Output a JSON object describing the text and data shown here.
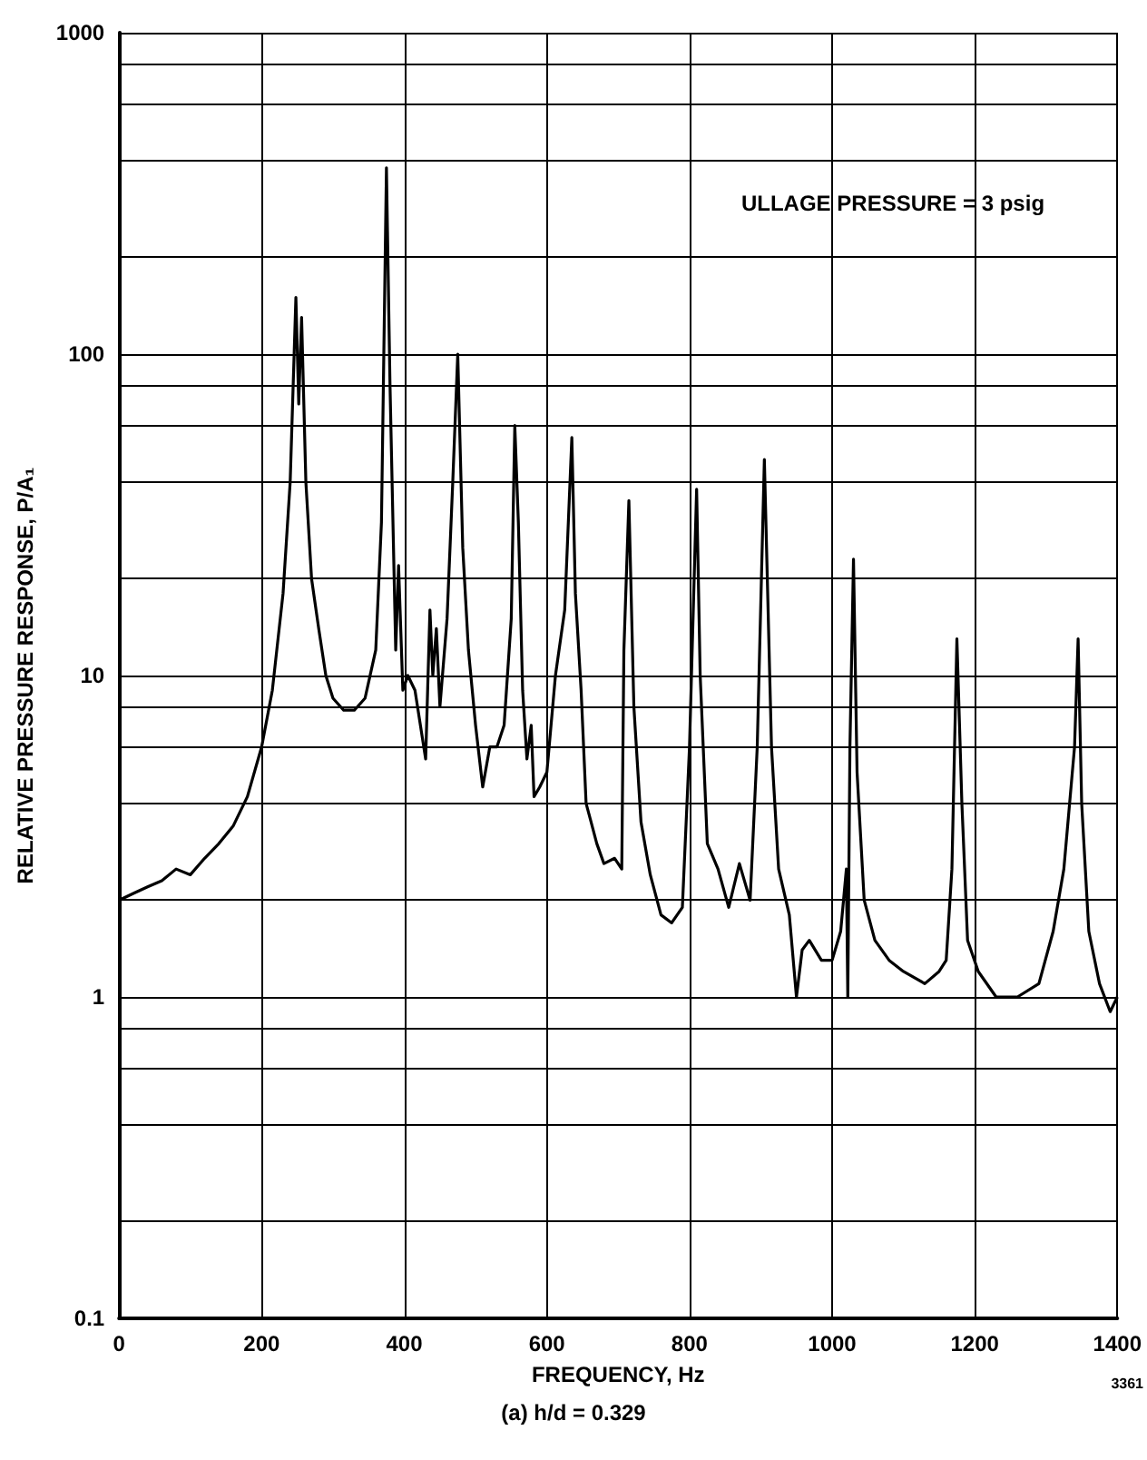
{
  "chart_data": {
    "type": "line",
    "xlabel": "FREQUENCY, Hz",
    "ylabel": "RELATIVE PRESSURE RESPONSE, P/A₁",
    "annotations": [
      "ULLAGE PRESSURE = 3 psig",
      "(a) h/d = 0.329",
      "3361"
    ],
    "xlim": [
      0,
      1400
    ],
    "xticks": [
      0,
      200,
      400,
      600,
      800,
      1000,
      1200,
      1400
    ],
    "ylim": [
      0.1,
      1000
    ],
    "yticks": [
      0.1,
      {
        "value": 0.2,
        "label": null
      },
      {
        "value": 0.4,
        "label": null
      },
      {
        "value": 0.6,
        "label": null
      },
      {
        "value": 0.8,
        "label": null
      },
      1,
      {
        "value": 2,
        "label": null
      },
      {
        "value": 4,
        "label": null
      },
      {
        "value": 6,
        "label": null
      },
      {
        "value": 8,
        "label": null
      },
      10,
      {
        "value": 20,
        "label": null
      },
      {
        "value": 40,
        "label": null
      },
      {
        "value": 60,
        "label": null
      },
      {
        "value": 80,
        "label": null
      },
      100,
      {
        "value": 200,
        "label": null
      },
      {
        "value": 400,
        "label": null
      },
      {
        "value": 600,
        "label": null
      },
      {
        "value": 800,
        "label": null
      },
      1000
    ],
    "log": "y",
    "grid": true,
    "marker": "none",
    "line_style": "solid",
    "series": [
      {
        "color": "#000000",
        "x": [
          0,
          20,
          40,
          60,
          80,
          100,
          120,
          140,
          160,
          180,
          200,
          215,
          230,
          240,
          248,
          252,
          256,
          262,
          270,
          280,
          290,
          300,
          315,
          330,
          345,
          360,
          368,
          375,
          380,
          388,
          392,
          398,
          405,
          415,
          430,
          436,
          440,
          445,
          450,
          460,
          468,
          475,
          482,
          490,
          500,
          510,
          520,
          530,
          540,
          550,
          555,
          560,
          566,
          572,
          578,
          582,
          590,
          600,
          612,
          625,
          635,
          640,
          648,
          655,
          662,
          670,
          680,
          695,
          705,
          708,
          715,
          722,
          732,
          745,
          760,
          775,
          790,
          800,
          810,
          815,
          825,
          840,
          855,
          870,
          885,
          895,
          905,
          915,
          925,
          940,
          950,
          958,
          968,
          985,
          1000,
          1012,
          1020,
          1022,
          1025,
          1030,
          1035,
          1045,
          1060,
          1080,
          1100,
          1130,
          1150,
          1160,
          1168,
          1175,
          1182,
          1190,
          1205,
          1230,
          1260,
          1290,
          1310,
          1325,
          1340,
          1345,
          1350,
          1360,
          1375,
          1390,
          1400
        ],
        "values": [
          2,
          2.1,
          2.2,
          2.3,
          2.5,
          2.4,
          2.7,
          3,
          3.4,
          4.2,
          6,
          9,
          18,
          40,
          150,
          70,
          130,
          40,
          20,
          14,
          10,
          8.5,
          7.8,
          7.8,
          8.5,
          12,
          30,
          380,
          80,
          12,
          22,
          9,
          10,
          9,
          5.5,
          16,
          10,
          14,
          8,
          15,
          40,
          100,
          25,
          12,
          7,
          4.5,
          6,
          6,
          7,
          15,
          60,
          30,
          9,
          5.5,
          7,
          4.2,
          4.5,
          5,
          10,
          16,
          55,
          18,
          9,
          4,
          3.5,
          3,
          2.6,
          2.7,
          2.5,
          12,
          35,
          8,
          3.5,
          2.4,
          1.8,
          1.7,
          1.9,
          6,
          38,
          10,
          3,
          2.5,
          1.9,
          2.6,
          2,
          6,
          47,
          6,
          2.5,
          1.8,
          1,
          1.4,
          1.5,
          1.3,
          1.3,
          1.6,
          2.5,
          1,
          6,
          23,
          5,
          2,
          1.5,
          1.3,
          1.2,
          1.1,
          1.2,
          1.3,
          2.5,
          13,
          4,
          1.5,
          1.2,
          1,
          1,
          1.1,
          1.6,
          2.5,
          6,
          13,
          4,
          1.6,
          1.1,
          0.9,
          1
        ]
      }
    ]
  }
}
